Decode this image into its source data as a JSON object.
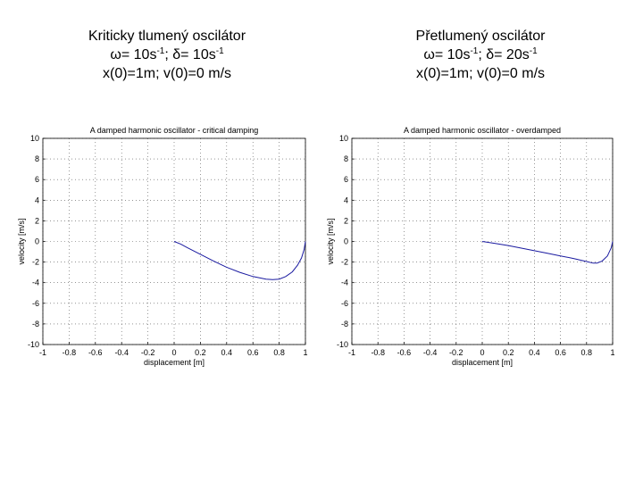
{
  "captions": [
    {
      "title": "Kriticky tlumený oscilátor",
      "params_line": {
        "omega_prefix": "ω= 10s",
        "exp1": "-1",
        "delta_prefix": "; δ= 10s",
        "exp2": "-1"
      },
      "initial": "x(0)=1m; v(0)=0 m/s"
    },
    {
      "title": "Přetlumený oscilátor",
      "params_line": {
        "omega_prefix": "ω= 10s",
        "exp1": "-1",
        "delta_prefix": "; δ= 20s",
        "exp2": "-1"
      },
      "initial": "x(0)=1m; v(0)=0 m/s"
    }
  ],
  "chart_data": [
    {
      "type": "line",
      "title": "A damped harmonic oscillator - critical damping",
      "xlabel": "displacement [m]",
      "ylabel": "velocity [m/s]",
      "xlim": [
        -1,
        1
      ],
      "ylim": [
        -10,
        10
      ],
      "xticks": [
        -1,
        -0.8,
        -0.6,
        -0.4,
        -0.2,
        0,
        0.2,
        0.4,
        0.6,
        0.8,
        1
      ],
      "xtick_labels": [
        "-1",
        "-0.8",
        "-0.6",
        "-0.4",
        "-0.2",
        "0",
        "0.2",
        "0.4",
        "0.6",
        "0.8",
        "1"
      ],
      "yticks": [
        -10,
        -8,
        -6,
        -4,
        -2,
        0,
        2,
        4,
        6,
        8,
        10
      ],
      "ytick_labels": [
        "-10",
        "-8",
        "-6",
        "-4",
        "-2",
        "0",
        "2",
        "4",
        "6",
        "8",
        "10"
      ],
      "grid": true,
      "color": "#1a1aa0",
      "series": [
        {
          "x": [
            0,
            0.05,
            0.1,
            0.2,
            0.3,
            0.4,
            0.5,
            0.6,
            0.7,
            0.75,
            0.8,
            0.85,
            0.9,
            0.94,
            0.97,
            0.99,
            1.0
          ],
          "y": [
            0,
            -0.25,
            -0.6,
            -1.25,
            -1.9,
            -2.5,
            -3.0,
            -3.4,
            -3.65,
            -3.7,
            -3.65,
            -3.4,
            -2.95,
            -2.3,
            -1.6,
            -0.8,
            0
          ]
        }
      ]
    },
    {
      "type": "line",
      "title": "A damped harmonic oscillator - overdamped",
      "xlabel": "displacement [m]",
      "ylabel": "velocity [m/s]",
      "xlim": [
        -1,
        1
      ],
      "ylim": [
        -10,
        10
      ],
      "xticks": [
        -1,
        -0.8,
        -0.6,
        -0.4,
        -0.2,
        0,
        0.2,
        0.4,
        0.6,
        0.8,
        1
      ],
      "xtick_labels": [
        "-1",
        "-0.8",
        "-0.6",
        "-0.4",
        "-0.2",
        "0",
        "0.2",
        "0.4",
        "0.6",
        "0.8",
        "1"
      ],
      "yticks": [
        -10,
        -8,
        -6,
        -4,
        -2,
        0,
        2,
        4,
        6,
        8,
        10
      ],
      "ytick_labels": [
        "-10",
        "-8",
        "-6",
        "-4",
        "-2",
        "0",
        "2",
        "4",
        "6",
        "8",
        "10"
      ],
      "grid": true,
      "color": "#1a1aa0",
      "series": [
        {
          "x": [
            0,
            0.1,
            0.2,
            0.3,
            0.4,
            0.5,
            0.6,
            0.7,
            0.8,
            0.85,
            0.88,
            0.92,
            0.96,
            0.99,
            1.0
          ],
          "y": [
            0,
            -0.2,
            -0.4,
            -0.65,
            -0.9,
            -1.15,
            -1.4,
            -1.65,
            -1.95,
            -2.1,
            -2.1,
            -1.9,
            -1.4,
            -0.6,
            0
          ]
        }
      ]
    }
  ]
}
